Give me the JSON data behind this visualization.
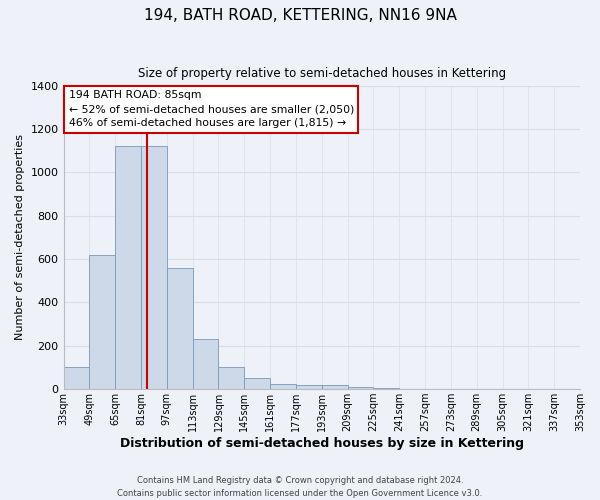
{
  "title": "194, BATH ROAD, KETTERING, NN16 9NA",
  "subtitle": "Size of property relative to semi-detached houses in Kettering",
  "xlabel": "Distribution of semi-detached houses by size in Kettering",
  "ylabel": "Number of semi-detached properties",
  "bin_edges": [
    33,
    49,
    65,
    81,
    97,
    113,
    129,
    145,
    161,
    177,
    193,
    209,
    225,
    241,
    257,
    273,
    289,
    305,
    321,
    337,
    353
  ],
  "bin_labels": [
    "33sqm",
    "49sqm",
    "65sqm",
    "81sqm",
    "97sqm",
    "113sqm",
    "129sqm",
    "145sqm",
    "161sqm",
    "177sqm",
    "193sqm",
    "209sqm",
    "225sqm",
    "241sqm",
    "257sqm",
    "273sqm",
    "289sqm",
    "305sqm",
    "321sqm",
    "337sqm",
    "353sqm"
  ],
  "bar_heights": [
    100,
    620,
    1120,
    1120,
    560,
    230,
    100,
    50,
    25,
    20,
    20,
    10,
    5,
    0,
    0,
    0,
    0,
    0,
    0,
    0
  ],
  "bar_color": "#cdd9e8",
  "bar_edge_color": "#7799bb",
  "property_value": 85,
  "property_label": "194 BATH ROAD: 85sqm",
  "annotation_line1": "← 52% of semi-detached houses are smaller (2,050)",
  "annotation_line2": "46% of semi-detached houses are larger (1,815) →",
  "annotation_box_color": "#ffffff",
  "annotation_box_edge_color": "#cc0000",
  "vline_color": "#cc0000",
  "ylim": [
    0,
    1400
  ],
  "yticks": [
    0,
    200,
    400,
    600,
    800,
    1000,
    1200,
    1400
  ],
  "grid_color": "#d8dde8",
  "background_color": "#eef1f8",
  "footer_line1": "Contains HM Land Registry data © Crown copyright and database right 2024.",
  "footer_line2": "Contains public sector information licensed under the Open Government Licence v3.0."
}
